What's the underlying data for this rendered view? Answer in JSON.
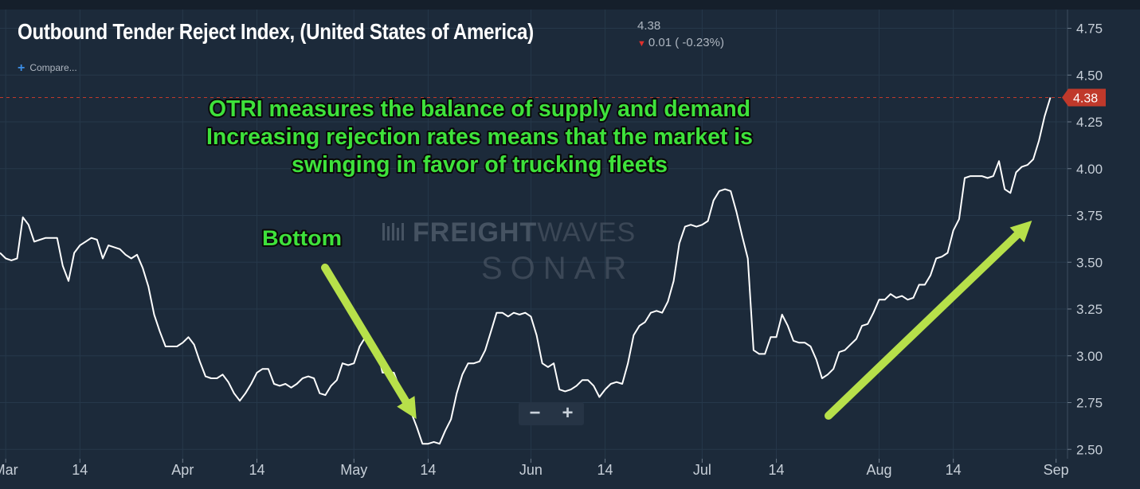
{
  "header": {
    "title": "Outbound Tender Reject Index, (United States of America)",
    "last_value": "4.38",
    "change_text": "0.01 ( -0.23%)",
    "compare_label": "Compare..."
  },
  "zoom": {
    "minus_label": "−",
    "plus_label": "+"
  },
  "watermark": {
    "word1a": "FREIGHT",
    "word1b": "WAVES",
    "word2": "SONAR"
  },
  "annotations": {
    "main_text": [
      "OTRI measures the balance of supply and demand",
      "Increasing rejection rates means that the market is",
      "swinging in favor of trucking fleets"
    ],
    "bottom_label": "Bottom"
  },
  "colors": {
    "background": "#1c2a3a",
    "line": "#ffffff",
    "annotation_text": "#3ee23b",
    "arrow": "#b7e04a",
    "last_value_tag": "#c0392b",
    "grid": "#26384a"
  },
  "chart_data": {
    "type": "line",
    "title": "Outbound Tender Reject Index, (United States of America)",
    "ylim": [
      2.45,
      4.85
    ],
    "y_ticks": [
      2.5,
      2.75,
      3.0,
      3.25,
      3.5,
      3.75,
      4.0,
      4.25,
      4.5,
      4.75
    ],
    "y_tick_labels": [
      "2.50",
      "2.75",
      "3.00",
      "3.25",
      "3.50",
      "3.75",
      "4.00",
      "4.25",
      "4.50",
      "4.75"
    ],
    "x_range": [
      "2019-02-28",
      "2019-09-03"
    ],
    "x_ticks": [
      {
        "date": "2019-03-01",
        "label": "Mar"
      },
      {
        "date": "2019-03-14",
        "label": "14"
      },
      {
        "date": "2019-04-01",
        "label": "Apr"
      },
      {
        "date": "2019-04-14",
        "label": "14"
      },
      {
        "date": "2019-05-01",
        "label": "May"
      },
      {
        "date": "2019-05-14",
        "label": "14"
      },
      {
        "date": "2019-06-01",
        "label": "Jun"
      },
      {
        "date": "2019-06-14",
        "label": "14"
      },
      {
        "date": "2019-07-01",
        "label": "Jul"
      },
      {
        "date": "2019-07-14",
        "label": "14"
      },
      {
        "date": "2019-08-01",
        "label": "Aug"
      },
      {
        "date": "2019-08-14",
        "label": "14"
      },
      {
        "date": "2019-09-01",
        "label": "Sep"
      }
    ],
    "last_value": 4.38,
    "last_value_label": "4.38",
    "grid": true,
    "series": [
      {
        "points": [
          [
            "2019-02-28",
            3.55
          ],
          [
            "2019-03-01",
            3.52
          ],
          [
            "2019-03-02",
            3.51
          ],
          [
            "2019-03-03",
            3.52
          ],
          [
            "2019-03-04",
            3.74
          ],
          [
            "2019-03-05",
            3.7
          ],
          [
            "2019-03-06",
            3.61
          ],
          [
            "2019-03-07",
            3.62
          ],
          [
            "2019-03-08",
            3.63
          ],
          [
            "2019-03-10",
            3.63
          ],
          [
            "2019-03-11",
            3.48
          ],
          [
            "2019-03-12",
            3.4
          ],
          [
            "2019-03-13",
            3.55
          ],
          [
            "2019-03-14",
            3.59
          ],
          [
            "2019-03-15",
            3.61
          ],
          [
            "2019-03-16",
            3.63
          ],
          [
            "2019-03-17",
            3.62
          ],
          [
            "2019-03-18",
            3.52
          ],
          [
            "2019-03-19",
            3.59
          ],
          [
            "2019-03-21",
            3.57
          ],
          [
            "2019-03-22",
            3.54
          ],
          [
            "2019-03-23",
            3.52
          ],
          [
            "2019-03-24",
            3.54
          ],
          [
            "2019-03-25",
            3.47
          ],
          [
            "2019-03-26",
            3.37
          ],
          [
            "2019-03-27",
            3.22
          ],
          [
            "2019-03-28",
            3.13
          ],
          [
            "2019-03-29",
            3.05
          ],
          [
            "2019-03-31",
            3.05
          ],
          [
            "2019-04-01",
            3.07
          ],
          [
            "2019-04-02",
            3.1
          ],
          [
            "2019-04-03",
            3.06
          ],
          [
            "2019-04-04",
            2.97
          ],
          [
            "2019-04-05",
            2.89
          ],
          [
            "2019-04-06",
            2.88
          ],
          [
            "2019-04-07",
            2.88
          ],
          [
            "2019-04-08",
            2.9
          ],
          [
            "2019-04-09",
            2.86
          ],
          [
            "2019-04-10",
            2.8
          ],
          [
            "2019-04-11",
            2.76
          ],
          [
            "2019-04-12",
            2.8
          ],
          [
            "2019-04-13",
            2.85
          ],
          [
            "2019-04-14",
            2.91
          ],
          [
            "2019-04-15",
            2.93
          ],
          [
            "2019-04-16",
            2.93
          ],
          [
            "2019-04-17",
            2.85
          ],
          [
            "2019-04-18",
            2.84
          ],
          [
            "2019-04-19",
            2.85
          ],
          [
            "2019-04-20",
            2.83
          ],
          [
            "2019-04-21",
            2.85
          ],
          [
            "2019-04-22",
            2.88
          ],
          [
            "2019-04-23",
            2.89
          ],
          [
            "2019-04-24",
            2.88
          ],
          [
            "2019-04-25",
            2.8
          ],
          [
            "2019-04-26",
            2.79
          ],
          [
            "2019-04-27",
            2.84
          ],
          [
            "2019-04-28",
            2.87
          ],
          [
            "2019-04-29",
            2.96
          ],
          [
            "2019-04-30",
            2.95
          ],
          [
            "2019-05-01",
            2.96
          ],
          [
            "2019-05-02",
            3.05
          ],
          [
            "2019-05-03",
            3.1
          ],
          [
            "2019-05-04",
            3.06
          ],
          [
            "2019-05-05",
            3.04
          ],
          [
            "2019-05-06",
            2.91
          ],
          [
            "2019-05-07",
            2.91
          ],
          [
            "2019-05-08",
            2.91
          ],
          [
            "2019-05-09",
            2.83
          ],
          [
            "2019-05-10",
            2.78
          ],
          [
            "2019-05-11",
            2.7
          ],
          [
            "2019-05-12",
            2.62
          ],
          [
            "2019-05-13",
            2.53
          ],
          [
            "2019-05-14",
            2.53
          ],
          [
            "2019-05-15",
            2.54
          ],
          [
            "2019-05-16",
            2.53
          ],
          [
            "2019-05-17",
            2.6
          ],
          [
            "2019-05-18",
            2.66
          ],
          [
            "2019-05-19",
            2.8
          ],
          [
            "2019-05-20",
            2.9
          ],
          [
            "2019-05-21",
            2.96
          ],
          [
            "2019-05-22",
            2.96
          ],
          [
            "2019-05-23",
            2.97
          ],
          [
            "2019-05-24",
            3.03
          ],
          [
            "2019-05-25",
            3.13
          ],
          [
            "2019-05-26",
            3.23
          ],
          [
            "2019-05-27",
            3.23
          ],
          [
            "2019-05-28",
            3.21
          ],
          [
            "2019-05-29",
            3.23
          ],
          [
            "2019-05-30",
            3.22
          ],
          [
            "2019-05-31",
            3.23
          ],
          [
            "2019-06-01",
            3.21
          ],
          [
            "2019-06-02",
            3.11
          ],
          [
            "2019-06-03",
            2.96
          ],
          [
            "2019-06-04",
            2.94
          ],
          [
            "2019-06-05",
            2.96
          ],
          [
            "2019-06-06",
            2.82
          ],
          [
            "2019-06-07",
            2.81
          ],
          [
            "2019-06-08",
            2.82
          ],
          [
            "2019-06-09",
            2.84
          ],
          [
            "2019-06-10",
            2.87
          ],
          [
            "2019-06-11",
            2.87
          ],
          [
            "2019-06-12",
            2.84
          ],
          [
            "2019-06-13",
            2.78
          ],
          [
            "2019-06-14",
            2.82
          ],
          [
            "2019-06-15",
            2.85
          ],
          [
            "2019-06-16",
            2.86
          ],
          [
            "2019-06-17",
            2.85
          ],
          [
            "2019-06-18",
            2.96
          ],
          [
            "2019-06-19",
            3.11
          ],
          [
            "2019-06-20",
            3.16
          ],
          [
            "2019-06-21",
            3.18
          ],
          [
            "2019-06-22",
            3.23
          ],
          [
            "2019-06-23",
            3.24
          ],
          [
            "2019-06-24",
            3.23
          ],
          [
            "2019-06-25",
            3.29
          ],
          [
            "2019-06-26",
            3.4
          ],
          [
            "2019-06-27",
            3.6
          ],
          [
            "2019-06-28",
            3.69
          ],
          [
            "2019-06-29",
            3.7
          ],
          [
            "2019-06-30",
            3.69
          ],
          [
            "2019-07-01",
            3.7
          ],
          [
            "2019-07-02",
            3.72
          ],
          [
            "2019-07-03",
            3.83
          ],
          [
            "2019-07-04",
            3.88
          ],
          [
            "2019-07-05",
            3.89
          ],
          [
            "2019-07-06",
            3.88
          ],
          [
            "2019-07-07",
            3.77
          ],
          [
            "2019-07-08",
            3.64
          ],
          [
            "2019-07-09",
            3.52
          ],
          [
            "2019-07-10",
            3.03
          ],
          [
            "2019-07-11",
            3.01
          ],
          [
            "2019-07-12",
            3.01
          ],
          [
            "2019-07-13",
            3.1
          ],
          [
            "2019-07-14",
            3.1
          ],
          [
            "2019-07-15",
            3.22
          ],
          [
            "2019-07-16",
            3.16
          ],
          [
            "2019-07-17",
            3.08
          ],
          [
            "2019-07-18",
            3.07
          ],
          [
            "2019-07-19",
            3.07
          ],
          [
            "2019-07-20",
            3.05
          ],
          [
            "2019-07-21",
            2.98
          ],
          [
            "2019-07-22",
            2.88
          ],
          [
            "2019-07-23",
            2.9
          ],
          [
            "2019-07-24",
            2.93
          ],
          [
            "2019-07-25",
            3.02
          ],
          [
            "2019-07-26",
            3.03
          ],
          [
            "2019-07-27",
            3.06
          ],
          [
            "2019-07-28",
            3.09
          ],
          [
            "2019-07-29",
            3.16
          ],
          [
            "2019-07-30",
            3.17
          ],
          [
            "2019-07-31",
            3.23
          ],
          [
            "2019-08-01",
            3.3
          ],
          [
            "2019-08-02",
            3.3
          ],
          [
            "2019-08-03",
            3.33
          ],
          [
            "2019-08-04",
            3.31
          ],
          [
            "2019-08-05",
            3.32
          ],
          [
            "2019-08-06",
            3.3
          ],
          [
            "2019-08-07",
            3.31
          ],
          [
            "2019-08-08",
            3.38
          ],
          [
            "2019-08-09",
            3.38
          ],
          [
            "2019-08-10",
            3.43
          ],
          [
            "2019-08-11",
            3.52
          ],
          [
            "2019-08-12",
            3.53
          ],
          [
            "2019-08-13",
            3.55
          ],
          [
            "2019-08-14",
            3.67
          ],
          [
            "2019-08-15",
            3.73
          ],
          [
            "2019-08-16",
            3.95
          ],
          [
            "2019-08-17",
            3.96
          ],
          [
            "2019-08-19",
            3.96
          ],
          [
            "2019-08-20",
            3.95
          ],
          [
            "2019-08-21",
            3.96
          ],
          [
            "2019-08-22",
            4.04
          ],
          [
            "2019-08-23",
            3.89
          ],
          [
            "2019-08-24",
            3.87
          ],
          [
            "2019-08-25",
            3.98
          ],
          [
            "2019-08-26",
            4.01
          ],
          [
            "2019-08-27",
            4.02
          ],
          [
            "2019-08-28",
            4.05
          ],
          [
            "2019-08-29",
            4.15
          ],
          [
            "2019-08-30",
            4.28
          ],
          [
            "2019-08-31",
            4.38
          ]
        ]
      }
    ]
  }
}
